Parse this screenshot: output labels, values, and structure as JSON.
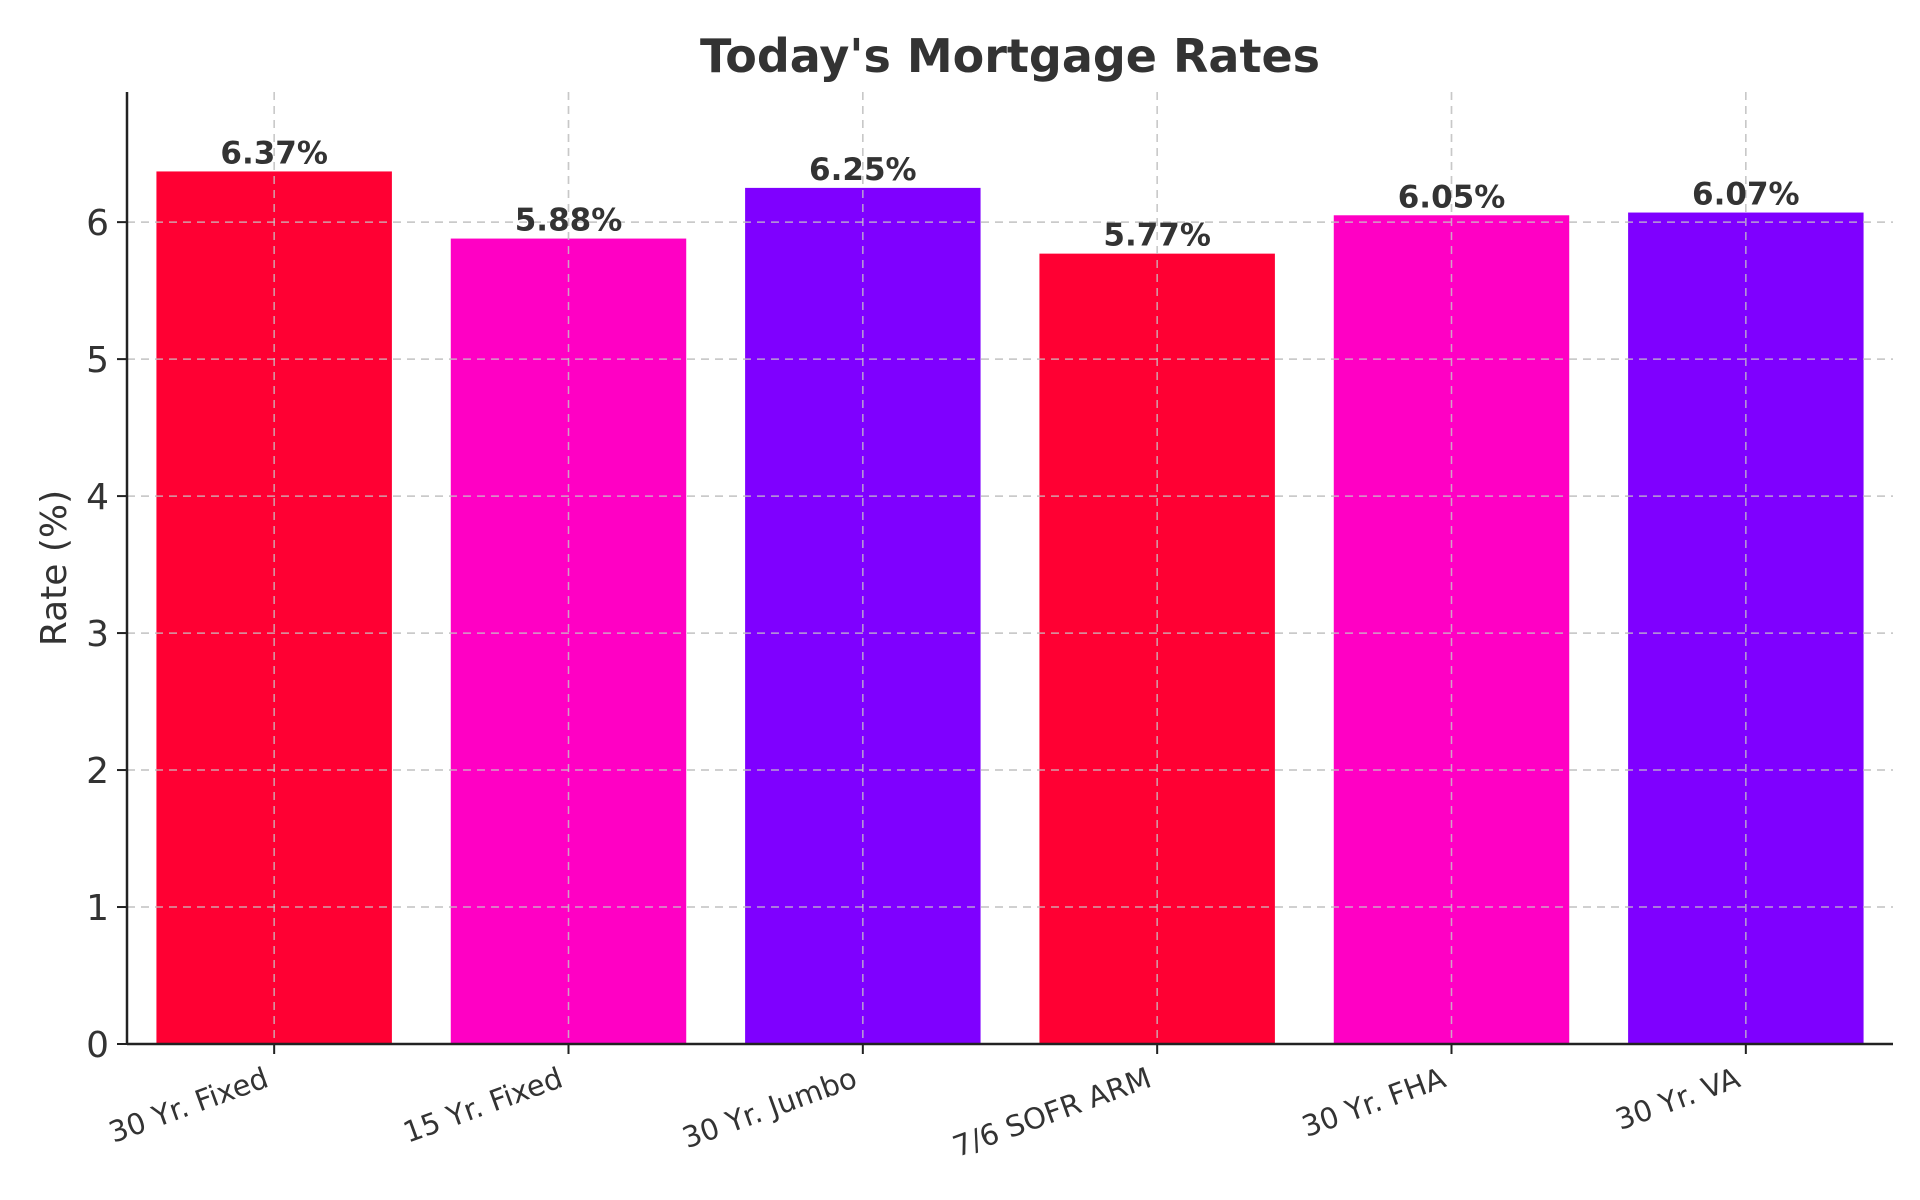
{
  "chart_data": {
    "type": "bar",
    "title": "Today's Mortgage Rates",
    "xlabel": "",
    "ylabel": "Rate (%)",
    "categories": [
      "30 Yr. Fixed",
      "15 Yr. Fixed",
      "30 Yr. Jumbo",
      "7/6 SOFR ARM",
      "30 Yr. FHA",
      "30 Yr. VA"
    ],
    "values": [
      6.37,
      5.88,
      6.25,
      5.77,
      6.05,
      6.07
    ],
    "data_labels": [
      "6.37%",
      "5.88%",
      "6.25%",
      "5.77%",
      "6.05%",
      "6.07%"
    ],
    "colors": [
      "#ff0033",
      "#ff00c4",
      "#7f00ff",
      "#ff0033",
      "#ff00c4",
      "#7f00ff"
    ],
    "ylim": [
      0,
      6.95
    ],
    "yticks": [
      0,
      1,
      2,
      3,
      4,
      5,
      6
    ],
    "grid": true,
    "legend": "none"
  }
}
